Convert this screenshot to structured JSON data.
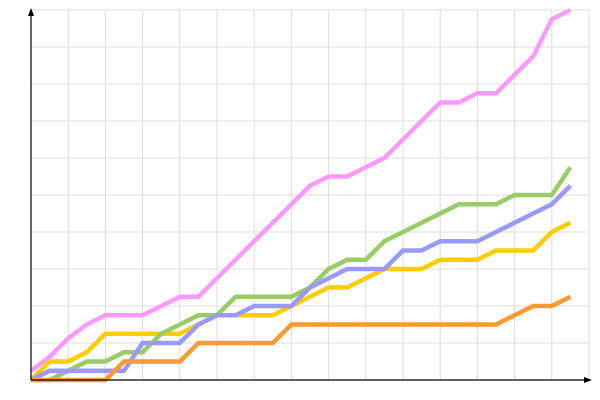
{
  "chart_data": {
    "type": "line",
    "title": "",
    "xlabel": "",
    "ylabel": "",
    "x": [
      0,
      1,
      2,
      3,
      4,
      5,
      6,
      7,
      8,
      9,
      10,
      11,
      12,
      13,
      14,
      15,
      16,
      17,
      18,
      19,
      20,
      21,
      22,
      23,
      24,
      25,
      26,
      27,
      28,
      29
    ],
    "xlim": [
      0,
      30
    ],
    "ylim": [
      0,
      40
    ],
    "x_grid_step": 2,
    "y_grid_step": 4,
    "grid": true,
    "legend": "none",
    "series": [
      {
        "color": "#ff99ff",
        "values": [
          1,
          2.5,
          4.5,
          6,
          7,
          7,
          7,
          8,
          9,
          9,
          11,
          13,
          15,
          17,
          19,
          21,
          22,
          22,
          23,
          24,
          26,
          28,
          30,
          30,
          31,
          31,
          33,
          35,
          39,
          40
        ]
      },
      {
        "color": "#ffcc00",
        "values": [
          0,
          2,
          2,
          3,
          5,
          5,
          5,
          5,
          5,
          6,
          7,
          7,
          7,
          7,
          8,
          9,
          10,
          10,
          11,
          12,
          12,
          12,
          13,
          13,
          13,
          14,
          14,
          14,
          16,
          17
        ]
      },
      {
        "color": "#99cc66",
        "values": [
          0,
          0,
          1,
          2,
          2,
          3,
          3,
          5,
          6,
          7,
          7,
          9,
          9,
          9,
          9,
          10,
          12,
          13,
          13,
          15,
          16,
          17,
          18,
          19,
          19,
          19,
          20,
          20,
          20,
          23
        ]
      },
      {
        "color": "#9999ff",
        "values": [
          0,
          1,
          1,
          1,
          1,
          1,
          4,
          4,
          4,
          6,
          7,
          7,
          8,
          8,
          8,
          10,
          11,
          12,
          12,
          12,
          14,
          14,
          15,
          15,
          15,
          16,
          17,
          18,
          19,
          21
        ]
      },
      {
        "color": "#ff9933",
        "values": [
          0,
          0,
          0,
          0,
          0,
          2,
          2,
          2,
          2,
          4,
          4,
          4,
          4,
          4,
          6,
          6,
          6,
          6,
          6,
          6,
          6,
          6,
          6,
          6,
          6,
          6,
          7,
          8,
          8,
          9
        ]
      }
    ],
    "colors": {
      "grid": "#dddddd",
      "axis": "#000000"
    }
  }
}
